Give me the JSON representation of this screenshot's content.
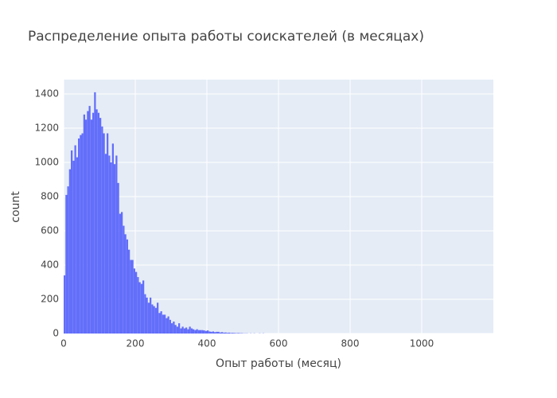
{
  "chart_data": {
    "type": "histogram",
    "title": "Распределение опыта работы соискателей (в месяцах)",
    "x_label": "Опыт работы (месяц)",
    "y_label": "count",
    "color": "#636efa",
    "grid": true,
    "xlim": [
      0,
      1200
    ],
    "ylim": [
      0,
      1484
    ],
    "xticks": [
      0,
      200,
      400,
      600,
      800,
      1000
    ],
    "yticks": [
      0,
      200,
      400,
      600,
      800,
      1000,
      1200,
      1400
    ],
    "bins": [
      0,
      5,
      10,
      15,
      20,
      25,
      30,
      35,
      40,
      45,
      50,
      55,
      60,
      65,
      70,
      75,
      80,
      85,
      90,
      95,
      100,
      105,
      110,
      115,
      120,
      125,
      130,
      135,
      140,
      145,
      150,
      155,
      160,
      165,
      170,
      175,
      180,
      185,
      190,
      195,
      200,
      205,
      210,
      215,
      220,
      225,
      230,
      235,
      240,
      245,
      250,
      255,
      260,
      265,
      270,
      275,
      280,
      285,
      290,
      295,
      300,
      305,
      310,
      315,
      320,
      325,
      330,
      335,
      340,
      345,
      350,
      355,
      360,
      365,
      370,
      375,
      380,
      385,
      390,
      395,
      400,
      405,
      410,
      415,
      420,
      425,
      430,
      435,
      440,
      445,
      450,
      455,
      460,
      465,
      470,
      475,
      480,
      485,
      490,
      495,
      500,
      505,
      510,
      515,
      520,
      525,
      530,
      535,
      540,
      545,
      550,
      555,
      560
    ],
    "values": [
      340,
      810,
      860,
      960,
      1070,
      1010,
      1100,
      1030,
      1140,
      1160,
      1170,
      1280,
      1250,
      1300,
      1330,
      1250,
      1290,
      1410,
      1310,
      1290,
      1260,
      1210,
      1170,
      1050,
      1170,
      1040,
      1000,
      1110,
      990,
      1040,
      880,
      700,
      710,
      630,
      580,
      550,
      490,
      430,
      430,
      380,
      360,
      330,
      300,
      290,
      310,
      230,
      210,
      180,
      210,
      170,
      160,
      150,
      180,
      120,
      130,
      110,
      110,
      90,
      100,
      80,
      60,
      70,
      50,
      40,
      60,
      30,
      40,
      30,
      35,
      25,
      40,
      30,
      25,
      20,
      25,
      20,
      20,
      20,
      18,
      15,
      18,
      12,
      10,
      12,
      8,
      10,
      10,
      6,
      8,
      5,
      6,
      4,
      5,
      3,
      4,
      3,
      2,
      3,
      2,
      2,
      1,
      1,
      1,
      0,
      1,
      0,
      1,
      0,
      0,
      1,
      0,
      1
    ]
  }
}
